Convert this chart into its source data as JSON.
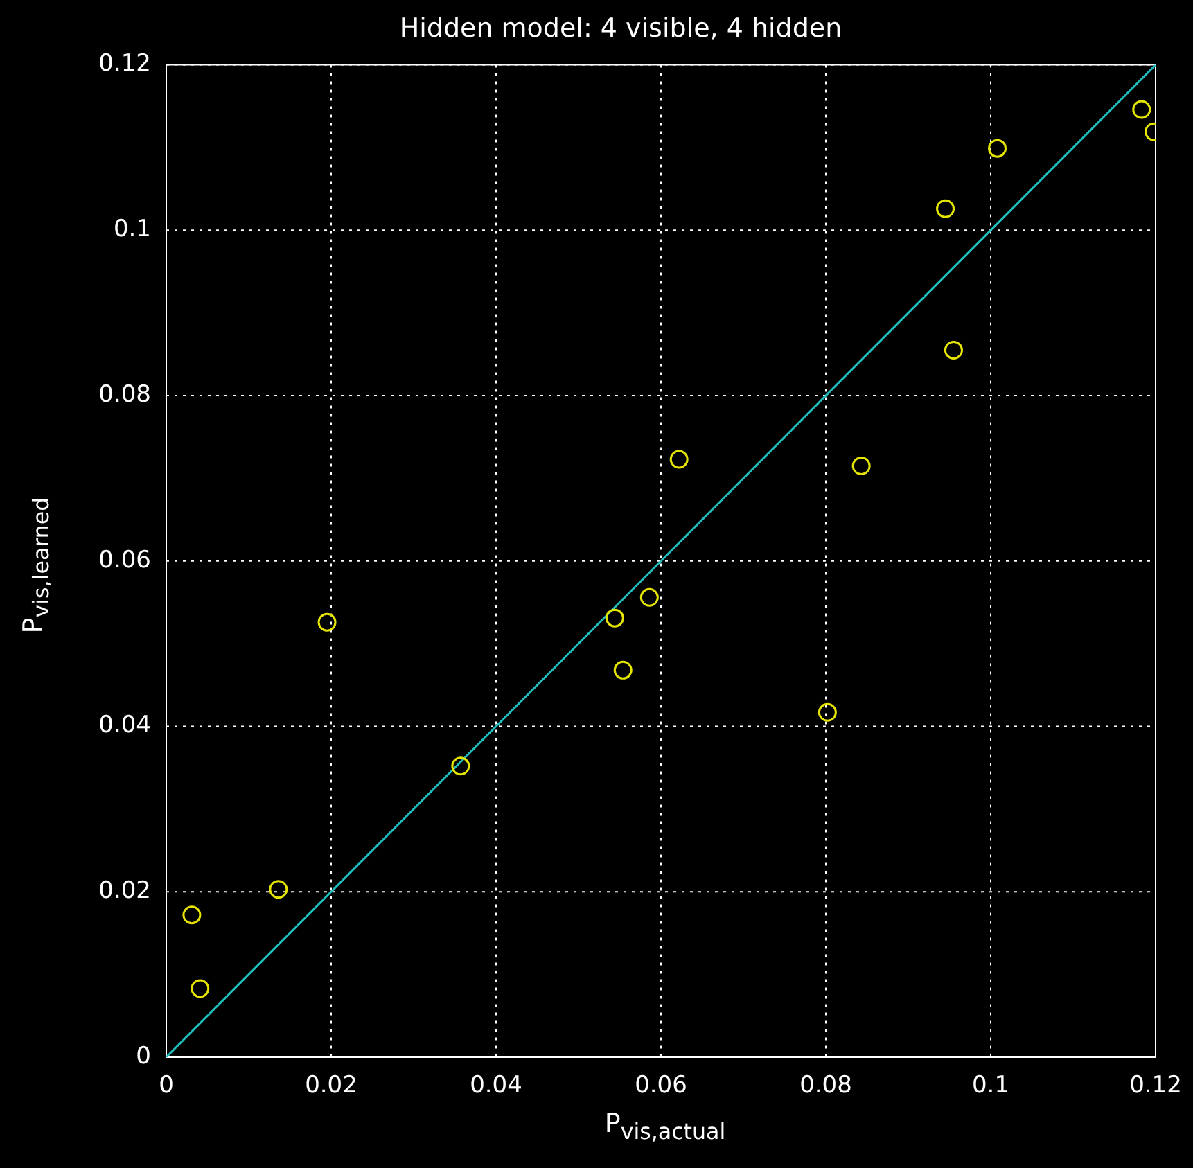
{
  "chart_data": {
    "type": "scatter",
    "title": "Hidden model: 4 visible, 4 hidden",
    "xlabel": "P$_{vis,actual}$",
    "ylabel": "P$_{vis,learned}$",
    "series": [
      {
        "type": "scatter",
        "color": "#e5e500",
        "marker": "circle",
        "x": [
          0.0031,
          0.0041,
          0.0136,
          0.0195,
          0.0357,
          0.0544,
          0.0554,
          0.0586,
          0.0622,
          0.0802,
          0.0843,
          0.0945,
          0.0955,
          0.1008,
          0.1183,
          0.1198
        ],
        "values": [
          0.0172,
          0.0083,
          0.0203,
          0.0526,
          0.0352,
          0.0531,
          0.0468,
          0.0556,
          0.0723,
          0.0417,
          0.0715,
          0.1026,
          0.0855,
          0.1099,
          0.1146,
          0.1119
        ]
      },
      {
        "type": "line",
        "color": "#1fbfbf",
        "marker": "none",
        "line_style": "solid",
        "x": [
          0,
          0.12
        ],
        "values": [
          0,
          0.12
        ]
      }
    ],
    "xlim": [
      0,
      0.12
    ],
    "ylim": [
      0,
      0.12
    ],
    "xticks": [
      0,
      0.02,
      0.04,
      0.06,
      0.08,
      0.1,
      0.12
    ],
    "yticks": [
      0,
      0.02,
      0.04,
      0.06,
      0.08,
      0.1,
      0.12
    ],
    "grid": true,
    "legend": false
  }
}
